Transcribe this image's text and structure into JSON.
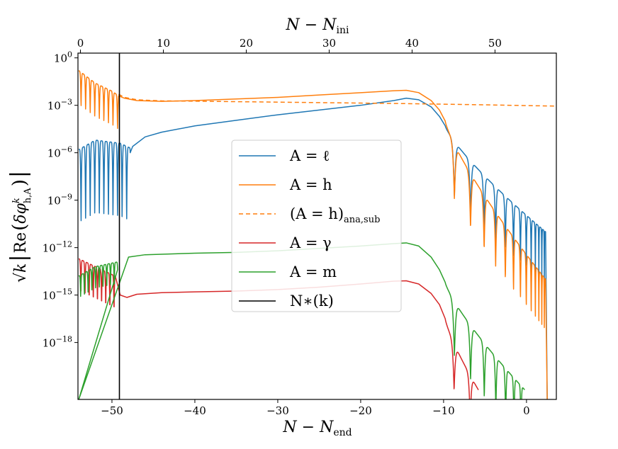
{
  "chart_data": {
    "type": "line",
    "y_scale": "log10",
    "bottom_axis": {
      "label": "N − N_end",
      "label_parts": [
        "N − N",
        "end"
      ],
      "range": [
        -54.1,
        3.6
      ],
      "ticks": [
        -50,
        -40,
        -30,
        -20,
        -10,
        0
      ],
      "tick_labels": [
        "−50",
        "−40",
        "−30",
        "−20",
        "−10",
        "0"
      ]
    },
    "top_axis": {
      "label": "N − N_ini",
      "label_parts": [
        "N − N",
        "ini"
      ],
      "range": [
        -0.3,
        57.4
      ],
      "ticks": [
        0,
        10,
        20,
        30,
        40,
        50
      ],
      "tick_labels": [
        "0",
        "10",
        "20",
        "30",
        "40",
        "50"
      ]
    },
    "y_axis": {
      "label": "√k |Re(δφᵏ h,A)|",
      "label_parts": [
        "√k",
        "Re",
        "δφ",
        "k",
        "h,A"
      ],
      "log_range": [
        -21.6,
        0.3
      ],
      "ticks_exp": [
        0,
        -3,
        -6,
        -9,
        -12,
        -15,
        -18
      ],
      "tick_labels": [
        "0",
        "−3",
        "−6",
        "−9",
        "−12",
        "−15",
        "−18"
      ],
      "tick_base": "10"
    },
    "vertical_line": {
      "name": "N_*(k)",
      "x": -49.1,
      "color": "#000000"
    },
    "legend": {
      "position": "center",
      "entries": [
        {
          "label": "A = ℓ",
          "color": "#1f77b4",
          "style": "solid"
        },
        {
          "label": "A = h",
          "color": "#ff7f0e",
          "style": "solid"
        },
        {
          "label": "(A = h)",
          "sub": "ana,sub",
          "color": "#ff7f0e",
          "style": "dashed"
        },
        {
          "label": "A = γ",
          "color": "#d62728",
          "style": "solid"
        },
        {
          "label": "A = m",
          "color": "#2ca02c",
          "style": "solid"
        },
        {
          "label": "N∗(k)",
          "color": "#000000",
          "style": "solid"
        }
      ]
    },
    "series": [
      {
        "name": "A = ℓ",
        "color": "#1f77b4",
        "style": "solid",
        "osc": {
          "start": -54,
          "end": -47.8,
          "period": 0.55,
          "dip": 5.0,
          "envelope": [
            [
              -54,
              -5.8
            ],
            [
              -52,
              -5.2
            ],
            [
              -49,
              -5.4
            ],
            [
              -47.8,
              -5.7
            ]
          ]
        },
        "points": [
          [
            -47.8,
            -6.0
          ],
          [
            -47.5,
            -5.6
          ],
          [
            -46,
            -5.0
          ],
          [
            -44,
            -4.7
          ],
          [
            -40,
            -4.3
          ],
          [
            -35,
            -3.95
          ],
          [
            -30,
            -3.6
          ],
          [
            -25,
            -3.3
          ],
          [
            -20,
            -3.0
          ],
          [
            -16,
            -2.7
          ],
          [
            -14.5,
            -2.55
          ],
          [
            -13,
            -2.65
          ],
          [
            -11.5,
            -3.1
          ],
          [
            -10.5,
            -3.7
          ],
          [
            -9.8,
            -4.3
          ]
        ],
        "decay_osc": {
          "start": -9.8,
          "end": 2.3,
          "start_level": -4.3,
          "end_level": -11.0,
          "period_start": 2.3,
          "period_end": 0.25,
          "dip": 3.5
        },
        "tail": [
          [
            2.3,
            -11.0
          ],
          [
            2.5,
            -21.6
          ]
        ]
      },
      {
        "name": "A = h",
        "color": "#ff7f0e",
        "style": "solid",
        "osc": {
          "start": -54,
          "end": -49.2,
          "period": 0.55,
          "dip": 2.3,
          "envelope": [
            [
              -54,
              -0.8
            ],
            [
              -52,
              -1.6
            ],
            [
              -50,
              -2.1
            ],
            [
              -49.2,
              -2.4
            ]
          ]
        },
        "points": [
          [
            -49.2,
            -2.4
          ],
          [
            -48.5,
            -2.55
          ],
          [
            -47,
            -2.7
          ],
          [
            -44,
            -2.75
          ],
          [
            -40,
            -2.7
          ],
          [
            -35,
            -2.6
          ],
          [
            -30,
            -2.5
          ],
          [
            -25,
            -2.35
          ],
          [
            -20,
            -2.2
          ],
          [
            -16,
            -2.08
          ],
          [
            -14.5,
            -2.05
          ],
          [
            -13,
            -2.2
          ],
          [
            -11.5,
            -2.7
          ],
          [
            -10.5,
            -3.3
          ],
          [
            -9.8,
            -4.0
          ]
        ],
        "decay_osc": {
          "start": -9.8,
          "end": 2.3,
          "start_level": -4.0,
          "end_level": -14.0,
          "period_start": 2.3,
          "period_end": 0.25,
          "dip": 3.5
        },
        "tail": [
          [
            2.3,
            -14.0
          ],
          [
            2.5,
            -21.6
          ]
        ]
      },
      {
        "name": "(A = h)_ana,sub",
        "color": "#ff7f0e",
        "style": "dashed",
        "points": [
          [
            -49.2,
            -2.3
          ],
          [
            -48.5,
            -2.5
          ],
          [
            -47,
            -2.65
          ],
          [
            -44,
            -2.72
          ],
          [
            -40,
            -2.74
          ],
          [
            -35,
            -2.77
          ],
          [
            -30,
            -2.8
          ],
          [
            -25,
            -2.83
          ],
          [
            -20,
            -2.86
          ],
          [
            -15,
            -2.89
          ],
          [
            -10,
            -2.93
          ],
          [
            -5,
            -2.97
          ],
          [
            0,
            -3.02
          ],
          [
            3.6,
            -3.05
          ]
        ]
      },
      {
        "name": "A = γ",
        "color": "#d62728",
        "style": "solid",
        "osc": {
          "start": -54,
          "end": -49.6,
          "period": 0.5,
          "dip": 2.4,
          "envelope": [
            [
              -54,
              -12.7
            ],
            [
              -52,
              -13.2
            ],
            [
              -49.6,
              -13.8
            ]
          ]
        },
        "points": [
          [
            -49.6,
            -13.8
          ],
          [
            -49,
            -15.0
          ],
          [
            -48.2,
            -15.15
          ],
          [
            -47,
            -14.95
          ],
          [
            -44,
            -14.85
          ],
          [
            -40,
            -14.8
          ],
          [
            -35,
            -14.75
          ],
          [
            -30,
            -14.65
          ],
          [
            -25,
            -14.5
          ],
          [
            -20,
            -14.3
          ],
          [
            -16,
            -14.12
          ],
          [
            -14.5,
            -14.1
          ],
          [
            -13,
            -14.3
          ],
          [
            -11.5,
            -14.9
          ],
          [
            -10.5,
            -15.6
          ],
          [
            -9.8,
            -16.5
          ]
        ],
        "decay_osc": {
          "start": -9.8,
          "end": -5.8,
          "start_level": -16.5,
          "end_level": -21.0,
          "period_start": 2.2,
          "period_end": 1.7,
          "dip": 3.0
        }
      },
      {
        "name": "A = m",
        "color": "#2ca02c",
        "style": "solid",
        "osc": {
          "start": -54,
          "end": -49.3,
          "period": 0.45,
          "dip": 1.5,
          "envelope": [
            [
              -54,
              -13.8
            ],
            [
              -52,
              -13.2
            ],
            [
              -49.3,
              -12.9
            ]
          ]
        },
        "points": [
          [
            -54.0,
            -21.6
          ],
          [
            -53.8,
            -16.5
          ],
          [
            -53.3,
            -14.2
          ],
          [
            -52,
            -13.6
          ],
          [
            -50,
            -13.1
          ],
          [
            -49.3,
            -12.9
          ],
          [
            -48,
            -12.6
          ],
          [
            -46,
            -12.45
          ],
          [
            -43,
            -12.4
          ],
          [
            -40,
            -12.35
          ],
          [
            -35,
            -12.3
          ],
          [
            -30,
            -12.2
          ],
          [
            -25,
            -12.05
          ],
          [
            -20,
            -11.9
          ],
          [
            -16,
            -11.75
          ],
          [
            -14.5,
            -11.7
          ],
          [
            -13,
            -11.9
          ],
          [
            -11.5,
            -12.6
          ],
          [
            -10.5,
            -13.4
          ],
          [
            -9.8,
            -14.2
          ]
        ],
        "decay_osc": {
          "start": -9.8,
          "end": -0.2,
          "start_level": -14.2,
          "end_level": -21.0,
          "period_start": 2.3,
          "period_end": 0.7,
          "dip": 3.5
        }
      }
    ]
  }
}
